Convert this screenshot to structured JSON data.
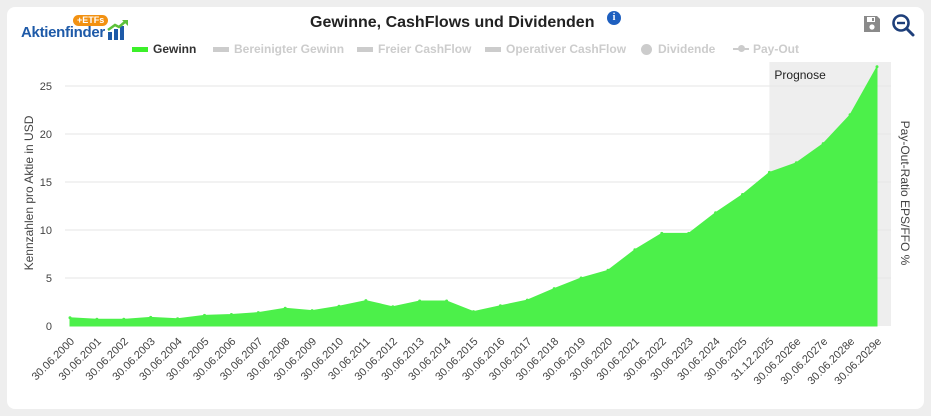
{
  "header": {
    "logo_text": "Aktienfinder",
    "logo_badge": "+ETFs",
    "title": "Gewinne, CashFlows und Dividenden",
    "info_icon": "info-icon",
    "save_icon": "save-icon",
    "zoom_icon": "zoom-out-icon"
  },
  "legend": [
    {
      "label": "Gewinn",
      "kind": "bar",
      "color": "#3cf02a",
      "active": true
    },
    {
      "label": "Bereinigter Gewinn",
      "kind": "bar",
      "color": "#cccccc",
      "active": false
    },
    {
      "label": "Freier CashFlow",
      "kind": "bar",
      "color": "#cccccc",
      "active": false
    },
    {
      "label": "Operativer CashFlow",
      "kind": "bar",
      "color": "#cccccc",
      "active": false
    },
    {
      "label": "Dividende",
      "kind": "dot",
      "color": "#cccccc",
      "active": false
    },
    {
      "label": "Pay-Out",
      "kind": "line",
      "color": "#cccccc",
      "active": false
    }
  ],
  "chart_data": {
    "type": "area",
    "title": "Gewinne, CashFlows und Dividenden",
    "ylabel": "Kennzahlen pro Aktie in USD",
    "ylabel_right": "Pay-Out-Ratio EPS/FFO %",
    "xlabel": "",
    "ylim": [
      0,
      27.5
    ],
    "yticks": [
      0,
      5,
      10,
      15,
      20,
      25
    ],
    "grid": true,
    "legend_position": "top",
    "forecast_band": {
      "label": "Prognose",
      "from": "31.12.2025",
      "to": "30.06.2029e",
      "color": "#eeeeee"
    },
    "x": [
      "30.06.2000",
      "30.06.2001",
      "30.06.2002",
      "30.06.2003",
      "30.06.2004",
      "30.06.2005",
      "30.06.2006",
      "30.06.2007",
      "30.06.2008",
      "30.06.2009",
      "30.06.2010",
      "30.06.2011",
      "30.06.2012",
      "30.06.2013",
      "30.06.2014",
      "30.06.2015",
      "30.06.2016",
      "30.06.2017",
      "30.06.2018",
      "30.06.2019",
      "30.06.2020",
      "30.06.2021",
      "30.06.2022",
      "30.06.2023",
      "30.06.2024",
      "30.06.2025",
      "31.12.2025",
      "30.06.2026e",
      "30.06.2027e",
      "30.06.2028e",
      "30.06.2029e"
    ],
    "series": [
      {
        "name": "Gewinn",
        "color": "#4cf04a",
        "values": [
          0.85,
          0.7,
          0.7,
          0.9,
          0.75,
          1.1,
          1.2,
          1.4,
          1.85,
          1.6,
          2.05,
          2.65,
          2.0,
          2.6,
          2.6,
          1.5,
          2.1,
          2.7,
          3.9,
          5.0,
          5.8,
          7.95,
          9.65,
          9.65,
          11.8,
          13.7,
          16.0,
          17.0,
          19.0,
          22.0,
          27.0
        ]
      }
    ]
  }
}
